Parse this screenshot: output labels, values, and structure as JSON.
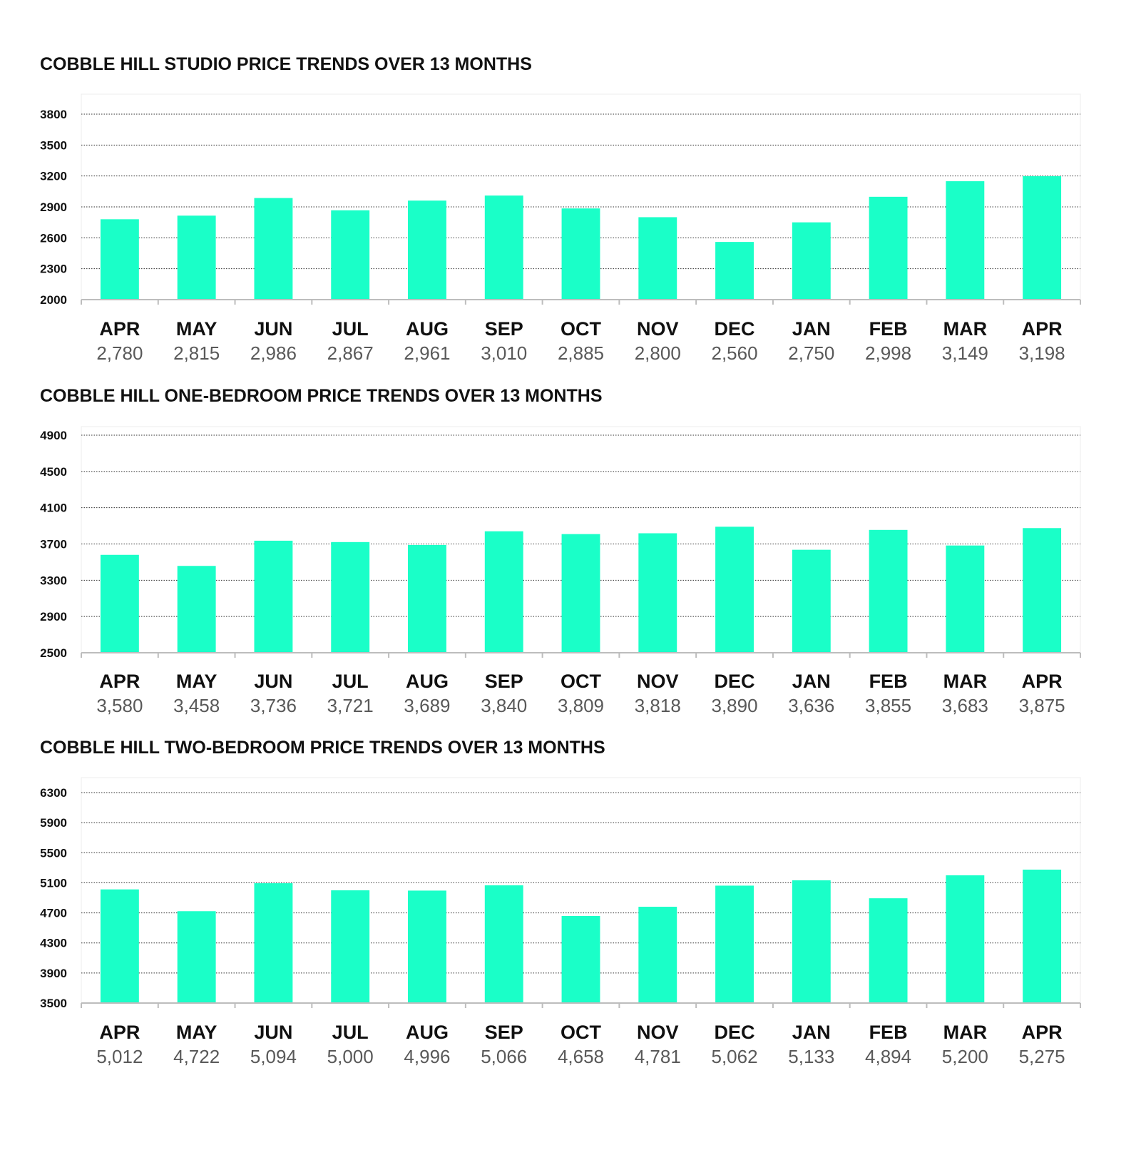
{
  "colors": {
    "bar": "#1affc8",
    "grid": "#333333",
    "axis": "#bdbdbd",
    "text": "#111111",
    "value_text": "#595959"
  },
  "chart_data": [
    {
      "type": "bar",
      "title": "COBBLE HILL STUDIO PRICE TRENDS OVER 13 MONTHS",
      "categories": [
        "APR",
        "MAY",
        "JUN",
        "JUL",
        "AUG",
        "SEP",
        "OCT",
        "NOV",
        "DEC",
        "JAN",
        "FEB",
        "MAR",
        "APR"
      ],
      "values": [
        2780,
        2815,
        2986,
        2867,
        2961,
        3010,
        2885,
        2800,
        2560,
        2750,
        2998,
        3149,
        3198
      ],
      "value_labels": [
        "2,780",
        "2,815",
        "2,986",
        "2,867",
        "2,961",
        "3,010",
        "2,885",
        "2,800",
        "2,560",
        "2,750",
        "2,998",
        "3,149",
        "3,198"
      ],
      "yticks": [
        "2000",
        "2300",
        "2600",
        "2900",
        "3200",
        "3500",
        "3800"
      ],
      "ylim": [
        2000,
        3800
      ],
      "grid": true
    },
    {
      "type": "bar",
      "title": "COBBLE HILL ONE-BEDROOM PRICE TRENDS OVER 13 MONTHS",
      "categories": [
        "APR",
        "MAY",
        "JUN",
        "JUL",
        "AUG",
        "SEP",
        "OCT",
        "NOV",
        "DEC",
        "JAN",
        "FEB",
        "MAR",
        "APR"
      ],
      "values": [
        3580,
        3458,
        3736,
        3721,
        3689,
        3840,
        3809,
        3818,
        3890,
        3636,
        3855,
        3683,
        3875
      ],
      "value_labels": [
        "3,580",
        "3,458",
        "3,736",
        "3,721",
        "3,689",
        "3,840",
        "3,809",
        "3,818",
        "3,890",
        "3,636",
        "3,855",
        "3,683",
        "3,875"
      ],
      "yticks": [
        "2500",
        "2900",
        "3300",
        "3700",
        "4100",
        "4500",
        "4900"
      ],
      "ylim": [
        2500,
        4900
      ],
      "grid": true
    },
    {
      "type": "bar",
      "title": "COBBLE HILL TWO-BEDROOM PRICE TRENDS OVER 13 MONTHS",
      "categories": [
        "APR",
        "MAY",
        "JUN",
        "JUL",
        "AUG",
        "SEP",
        "OCT",
        "NOV",
        "DEC",
        "JAN",
        "FEB",
        "MAR",
        "APR"
      ],
      "values": [
        5012,
        4722,
        5094,
        5000,
        4996,
        5066,
        4658,
        4781,
        5062,
        5133,
        4894,
        5200,
        5275
      ],
      "value_labels": [
        "5,012",
        "4,722",
        "5,094",
        "5,000",
        "4,996",
        "5,066",
        "4,658",
        "4,781",
        "5,062",
        "5,133",
        "4,894",
        "5,200",
        "5,275"
      ],
      "yticks": [
        "3500",
        "3900",
        "4300",
        "4700",
        "5100",
        "5500",
        "5900",
        "6300"
      ],
      "ylim": [
        3500,
        6300
      ],
      "grid": true
    }
  ]
}
